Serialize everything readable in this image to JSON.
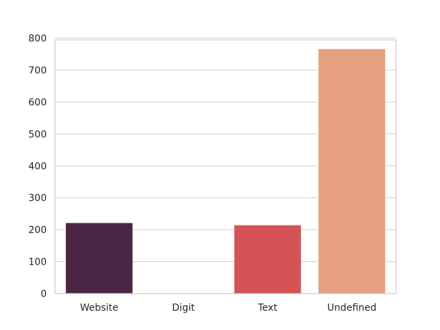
{
  "chart_data": {
    "type": "bar",
    "categories": [
      "Website",
      "Digit",
      "Text",
      "Undefined"
    ],
    "values": [
      222,
      2,
      215,
      767
    ],
    "colors": [
      "#4a2545",
      "#a3305a",
      "#d45355",
      "#e5a07f"
    ],
    "ylim": [
      0,
      800
    ],
    "yticks": [
      "0",
      "100",
      "200",
      "300",
      "400",
      "500",
      "600",
      "700",
      "800"
    ],
    "grid": true,
    "title": "",
    "xlabel": "",
    "ylabel": ""
  }
}
